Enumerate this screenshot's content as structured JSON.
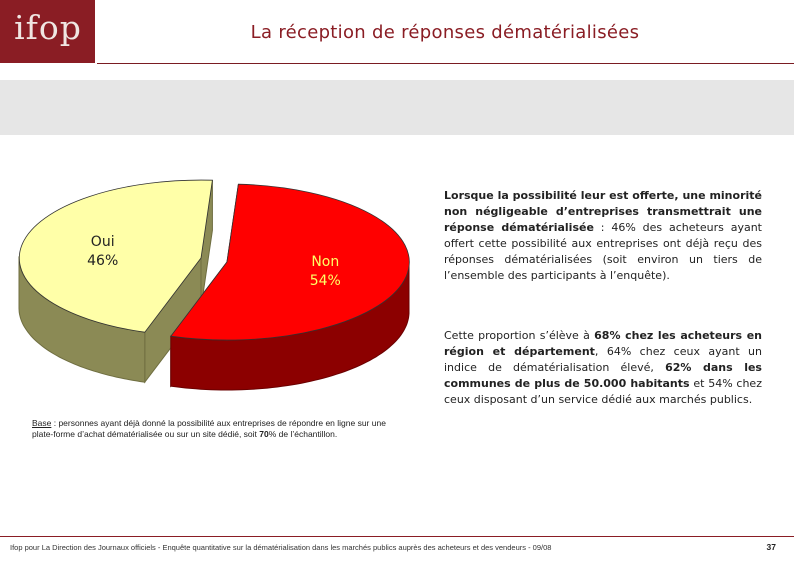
{
  "header": {
    "logo": "ifop",
    "title": "La réception de réponses dématérialisées",
    "brand_color": "#8a1d24"
  },
  "chart_data": {
    "type": "pie",
    "style": "3d-exploded",
    "slices": [
      {
        "label": "Oui",
        "value": 46,
        "display": "46%",
        "color": "#ffffa8"
      },
      {
        "label": "Non",
        "value": 54,
        "display": "54%",
        "color": "#ff0000"
      }
    ]
  },
  "text": {
    "para1_part1": "Lorsque la possibilité leur est offerte, une minorité non négligeable d’entreprises transmettrait une réponse dématérialisée",
    "para1_part2": " : 46% des acheteurs ayant offert cette possibilité aux entreprises ont déjà reçu des réponses dématérialisées (soit environ un tiers de l’ensemble des participants à l’enquête).",
    "para2_part1": "Cette proportion s’élève à ",
    "para2_bold1": "68% chez les acheteurs en région et département",
    "para2_part2": ", 64% chez ceux ayant un indice de dématérialisation élevé, ",
    "para2_bold2": "62% dans les communes de plus de 50.000 habitants",
    "para2_part3": " et 54% chez ceux disposant d’un service dédié aux marchés publics."
  },
  "base_note": {
    "label": "Base",
    "text_part1": " : personnes ayant déjà donné la possibilité aux entreprises de répondre en ligne sur une plate-forme d’achat dématérialisée ou sur un site dédié, soit ",
    "bold": "70",
    "text_part2": "% de l’échantillon."
  },
  "footer": {
    "text": "Ifop pour La Direction des Journaux officiels - Enquête quantitative sur la dématérialisation dans les marchés publics auprès des acheteurs et des vendeurs - 09/08",
    "page": "37"
  }
}
